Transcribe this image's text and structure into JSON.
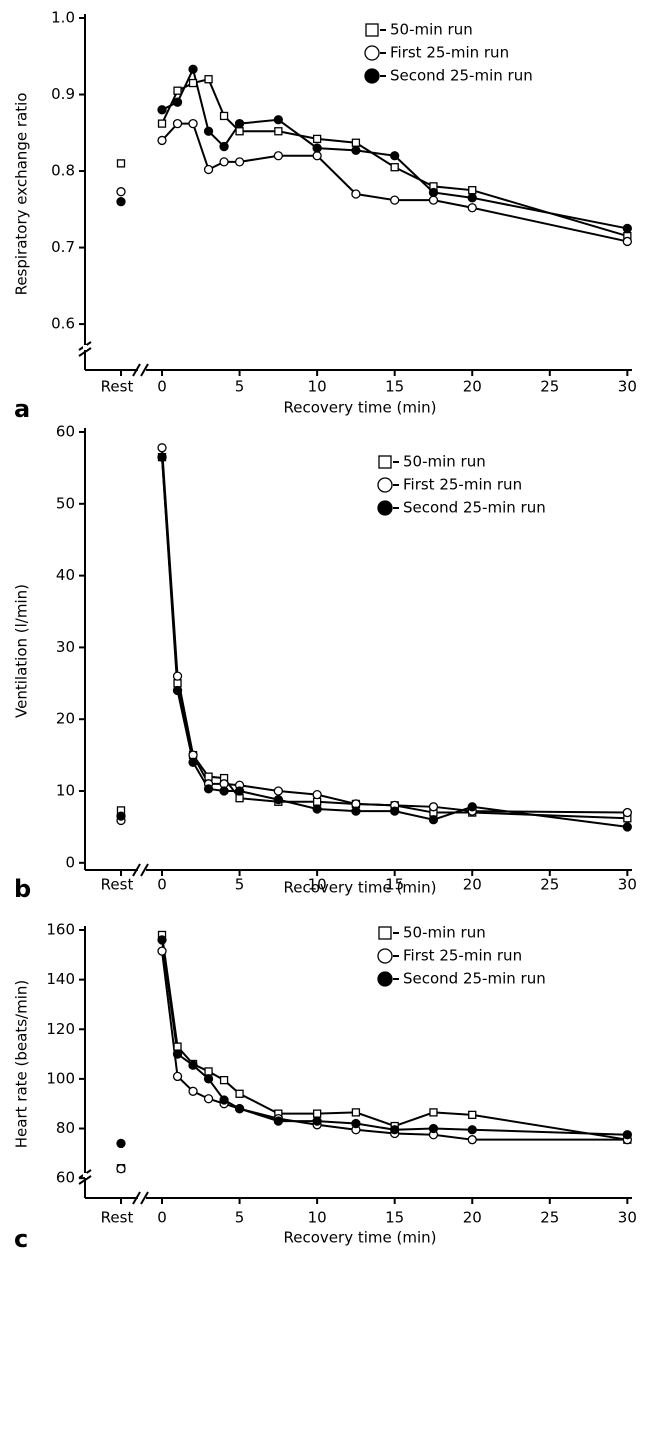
{
  "chart_data": [
    {
      "type": "line",
      "panel_label": "a",
      "xlabel": "Recovery time (min)",
      "ylabel": "Respiratory exchange ratio",
      "rest_label": "Rest",
      "x": [
        0,
        1,
        2,
        3,
        4,
        5,
        7.5,
        10,
        12.5,
        15,
        17.5,
        20,
        30
      ],
      "xlim": [
        -2,
        30.3
      ],
      "xticks": [
        0,
        5,
        10,
        15,
        20,
        25,
        30
      ],
      "ylim": [
        0.54,
        1.0
      ],
      "yticks": [
        0.6,
        0.7,
        0.8,
        0.9,
        {
          "value": 1,
          "label": "1.0"
        }
      ],
      "legend": "upper right",
      "series": [
        {
          "name": "50-min run",
          "color": "#000",
          "marker": "square-open",
          "rest": 0.81,
          "values": [
            0.862,
            0.905,
            0.915,
            0.92,
            0.872,
            0.852,
            0.852,
            0.842,
            0.837,
            0.805,
            0.78,
            0.775,
            0.715
          ]
        },
        {
          "name": "First 25-min run",
          "color": "#000",
          "marker": "circle-open",
          "rest": 0.773,
          "values": [
            0.84,
            0.862,
            0.862,
            0.802,
            0.812,
            0.812,
            0.82,
            0.82,
            0.77,
            0.762,
            0.762,
            0.752,
            0.708
          ]
        },
        {
          "name": "Second 25-min run",
          "color": "#000",
          "marker": "circle-filled",
          "rest": 0.76,
          "values": [
            0.88,
            0.89,
            0.933,
            0.852,
            0.832,
            0.862,
            0.867,
            0.83,
            0.827,
            0.82,
            0.772,
            0.765,
            0.725
          ]
        }
      ]
    },
    {
      "type": "line",
      "panel_label": "b",
      "xlabel": "Recovery time (min)",
      "ylabel": "Ventilation (l/min)",
      "rest_label": "Rest",
      "x": [
        0,
        1,
        2,
        3,
        4,
        5,
        7.5,
        10,
        12.5,
        15,
        17.5,
        20,
        30
      ],
      "xlim": [
        -2,
        30.3
      ],
      "xticks": [
        0,
        5,
        10,
        15,
        20,
        25,
        30
      ],
      "ylim": [
        -1,
        60
      ],
      "yticks": [
        0,
        10,
        20,
        30,
        40,
        50,
        60
      ],
      "legend": "upper right",
      "series": [
        {
          "name": "50-min run",
          "color": "#000",
          "marker": "square-open",
          "rest": 7.3,
          "values": [
            56.5,
            25,
            15,
            12,
            11.8,
            9,
            8.5,
            8.5,
            8.2,
            8.0,
            7.0,
            7.0,
            6.2
          ]
        },
        {
          "name": "First 25-min run",
          "color": "#000",
          "marker": "circle-open",
          "rest": 5.9,
          "values": [
            57.8,
            26,
            15,
            11,
            11,
            10.8,
            10,
            9.5,
            8.2,
            8,
            7.8,
            7.2,
            7
          ]
        },
        {
          "name": "Second 25-min run",
          "color": "#000",
          "marker": "circle-filled",
          "rest": 6.5,
          "values": [
            56.5,
            24,
            14,
            10.3,
            10,
            10,
            8.8,
            7.5,
            7.2,
            7.2,
            6,
            7.8,
            5
          ]
        }
      ]
    },
    {
      "type": "line",
      "panel_label": "c",
      "xlabel": "Recovery time (min)",
      "ylabel": "Heart rate (beats/min)",
      "rest_label": "Rest",
      "x": [
        0,
        1,
        2,
        3,
        4,
        5,
        7.5,
        10,
        12.5,
        15,
        17.5,
        20,
        30
      ],
      "xlim": [
        -2,
        30.3
      ],
      "xticks": [
        0,
        5,
        10,
        15,
        20,
        25,
        30
      ],
      "ylim": [
        52,
        160
      ],
      "yticks": [
        60,
        80,
        100,
        120,
        140,
        160
      ],
      "legend": "upper right",
      "series": [
        {
          "name": "50-min run",
          "color": "#000",
          "marker": "square-open",
          "rest": 64,
          "values": [
            158,
            113,
            106,
            103,
            99.5,
            94,
            86,
            86,
            86.5,
            81,
            86.5,
            85.5,
            75.5
          ]
        },
        {
          "name": "First 25-min run",
          "color": "#000",
          "marker": "circle-open",
          "rest": 63.8,
          "values": [
            151.5,
            101,
            95,
            92,
            90,
            88,
            84,
            81.5,
            79.5,
            78,
            77.5,
            75.5,
            75.5
          ]
        },
        {
          "name": "Second 25-min run",
          "color": "#000",
          "marker": "circle-filled",
          "rest": 74,
          "values": [
            156,
            110,
            105.5,
            100,
            91.5,
            88,
            83,
            83,
            82,
            79.5,
            80,
            79.5,
            77.5
          ]
        }
      ]
    }
  ]
}
